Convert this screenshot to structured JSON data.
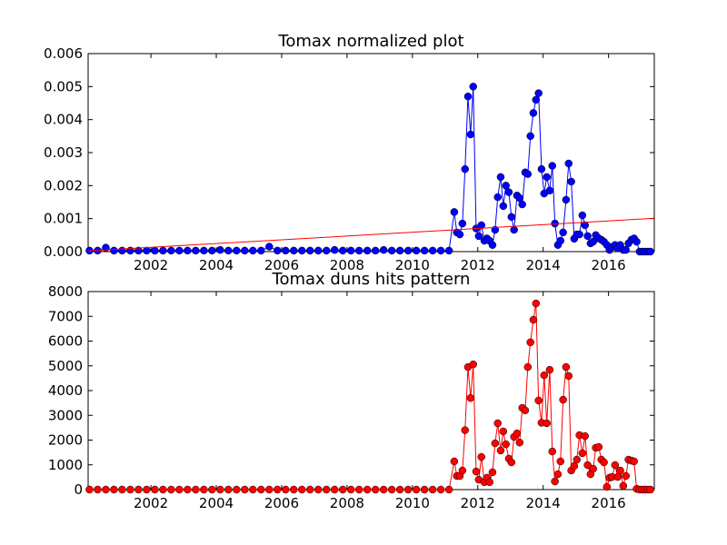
{
  "chart_data": [
    {
      "type": "line",
      "title": "Tomax normalized plot",
      "marker": true,
      "grid": false,
      "xlim": [
        2000.08,
        2017.4
      ],
      "xticks": [
        2002,
        2004,
        2006,
        2008,
        2010,
        2012,
        2014,
        2016
      ],
      "ylim": [
        0,
        0.006
      ],
      "yticks": [
        {
          "value": 0,
          "label": "0.000"
        },
        {
          "value": 0.001,
          "label": "0.001"
        },
        {
          "value": 0.002,
          "label": "0.002"
        },
        {
          "value": 0.003,
          "label": "0.003"
        },
        {
          "value": 0.004,
          "label": "0.004"
        },
        {
          "value": 0.005,
          "label": "0.005"
        },
        {
          "value": 0.006,
          "label": "0.006"
        }
      ],
      "x": [
        2000.12,
        2000.37,
        2000.62,
        2000.87,
        2001.12,
        2001.37,
        2001.62,
        2001.87,
        2002.12,
        2002.37,
        2002.62,
        2002.87,
        2003.12,
        2003.37,
        2003.62,
        2003.87,
        2004.12,
        2004.37,
        2004.62,
        2004.87,
        2005.12,
        2005.37,
        2005.62,
        2005.87,
        2006.12,
        2006.37,
        2006.62,
        2006.87,
        2007.12,
        2007.37,
        2007.62,
        2007.87,
        2008.12,
        2008.37,
        2008.62,
        2008.87,
        2009.12,
        2009.37,
        2009.62,
        2009.87,
        2010.12,
        2010.37,
        2010.62,
        2010.87,
        2011.12,
        2011.28,
        2011.36,
        2011.45,
        2011.53,
        2011.61,
        2011.7,
        2011.78,
        2011.86,
        2011.95,
        2012.03,
        2012.11,
        2012.2,
        2012.28,
        2012.36,
        2012.45,
        2012.53,
        2012.61,
        2012.7,
        2012.78,
        2012.86,
        2012.95,
        2013.03,
        2013.11,
        2013.2,
        2013.28,
        2013.36,
        2013.45,
        2013.53,
        2013.61,
        2013.7,
        2013.78,
        2013.86,
        2013.95,
        2014.03,
        2014.11,
        2014.2,
        2014.28,
        2014.36,
        2014.45,
        2014.53,
        2014.61,
        2014.7,
        2014.78,
        2014.86,
        2014.95,
        2015.03,
        2015.11,
        2015.2,
        2015.28,
        2015.36,
        2015.45,
        2015.53,
        2015.61,
        2015.7,
        2015.78,
        2015.86,
        2015.95,
        2016.03,
        2016.11,
        2016.2,
        2016.28,
        2016.36,
        2016.45,
        2016.53,
        2016.61,
        2016.7,
        2016.78,
        2016.86,
        2016.95,
        2017.03,
        2017.11,
        2017.2,
        2017.28
      ],
      "series": [
        {
          "color": "#0000ff",
          "values": [
            3e-05,
            3e-05,
            0.00012,
            3e-05,
            3e-05,
            3e-05,
            3e-05,
            3e-05,
            3e-05,
            3e-05,
            3e-05,
            3e-05,
            3e-05,
            3e-05,
            3e-05,
            3e-05,
            5e-05,
            3e-05,
            3e-05,
            3e-05,
            3e-05,
            3e-05,
            0.00015,
            3e-05,
            3e-05,
            3e-05,
            3e-05,
            3e-05,
            3e-05,
            3e-05,
            5e-05,
            3e-05,
            3e-05,
            3e-05,
            3e-05,
            3e-05,
            5e-05,
            3e-05,
            3e-05,
            3e-05,
            3e-05,
            3e-05,
            3e-05,
            3e-05,
            3e-05,
            0.0012,
            0.00058,
            0.00052,
            0.00085,
            0.0025,
            0.0047,
            0.00355,
            0.005,
            0.0007,
            0.00047,
            0.0008,
            0.00033,
            0.0004,
            0.00033,
            0.0002,
            0.00066,
            0.00165,
            0.00226,
            0.00138,
            0.002,
            0.0018,
            0.00105,
            0.00066,
            0.0017,
            0.00162,
            0.00143,
            0.0024,
            0.00235,
            0.0035,
            0.0042,
            0.0046,
            0.0048,
            0.0025,
            0.00176,
            0.00226,
            0.00185,
            0.0026,
            0.00085,
            0.0002,
            0.00033,
            0.00058,
            0.00157,
            0.00267,
            0.00212,
            0.00039,
            0.00052,
            0.00052,
            0.0011,
            0.0008,
            0.00047,
            0.00025,
            0.0003,
            0.0005,
            0.0004,
            0.00036,
            0.0003,
            0.0002,
            5e-05,
            0.00014,
            0.0002,
            0.0001,
            0.0002,
            5e-05,
            5e-05,
            0.00025,
            0.00036,
            0.0004,
            0.0003,
            0,
            0,
            0,
            0,
            0
          ]
        }
      ],
      "trend_line": {
        "color": "#ff0000",
        "x": [
          2000.08,
          2017.4
        ],
        "values": [
          2e-05,
          0.00101
        ]
      }
    },
    {
      "type": "line",
      "title": "Tomax duns hits pattern",
      "marker": true,
      "grid": false,
      "xlim": [
        2000.08,
        2017.4
      ],
      "xticks": [
        2002,
        2004,
        2006,
        2008,
        2010,
        2012,
        2014,
        2016
      ],
      "ylim": [
        0,
        8000
      ],
      "yticks": [
        0,
        1000,
        2000,
        3000,
        4000,
        5000,
        6000,
        7000,
        8000
      ],
      "x": [
        2000.12,
        2000.37,
        2000.62,
        2000.87,
        2001.12,
        2001.37,
        2001.62,
        2001.87,
        2002.12,
        2002.37,
        2002.62,
        2002.87,
        2003.12,
        2003.37,
        2003.62,
        2003.87,
        2004.12,
        2004.37,
        2004.62,
        2004.87,
        2005.12,
        2005.37,
        2005.62,
        2005.87,
        2006.12,
        2006.37,
        2006.62,
        2006.87,
        2007.12,
        2007.37,
        2007.62,
        2007.87,
        2008.12,
        2008.37,
        2008.62,
        2008.87,
        2009.12,
        2009.37,
        2009.62,
        2009.87,
        2010.12,
        2010.37,
        2010.62,
        2010.87,
        2011.12,
        2011.28,
        2011.36,
        2011.45,
        2011.53,
        2011.61,
        2011.7,
        2011.78,
        2011.86,
        2011.95,
        2012.03,
        2012.11,
        2012.2,
        2012.28,
        2012.36,
        2012.45,
        2012.53,
        2012.61,
        2012.7,
        2012.78,
        2012.86,
        2012.95,
        2013.03,
        2013.11,
        2013.2,
        2013.28,
        2013.36,
        2013.45,
        2013.53,
        2013.61,
        2013.7,
        2013.78,
        2013.86,
        2013.95,
        2014.03,
        2014.11,
        2014.2,
        2014.28,
        2014.36,
        2014.45,
        2014.53,
        2014.61,
        2014.7,
        2014.78,
        2014.86,
        2014.95,
        2015.03,
        2015.11,
        2015.2,
        2015.28,
        2015.36,
        2015.45,
        2015.53,
        2015.61,
        2015.7,
        2015.78,
        2015.86,
        2015.95,
        2016.03,
        2016.11,
        2016.2,
        2016.28,
        2016.36,
        2016.45,
        2016.53,
        2016.61,
        2016.7,
        2016.78,
        2016.86,
        2016.95,
        2017.03,
        2017.11,
        2017.2,
        2017.28
      ],
      "series": [
        {
          "color": "#ff0000",
          "values": [
            0,
            0,
            0,
            0,
            0,
            0,
            0,
            0,
            0,
            0,
            0,
            0,
            0,
            0,
            0,
            0,
            0,
            0,
            0,
            0,
            0,
            0,
            0,
            0,
            0,
            0,
            0,
            0,
            0,
            0,
            0,
            0,
            0,
            0,
            0,
            0,
            0,
            0,
            0,
            0,
            0,
            0,
            0,
            0,
            0,
            1140,
            550,
            550,
            770,
            2400,
            4950,
            3700,
            5060,
            730,
            400,
            1320,
            300,
            480,
            300,
            700,
            1870,
            2680,
            1580,
            2350,
            1830,
            1250,
            1100,
            2130,
            2270,
            1900,
            3300,
            3200,
            4950,
            5950,
            6860,
            7520,
            3600,
            2700,
            4620,
            2680,
            4840,
            1540,
            330,
            620,
            1140,
            3630,
            4950,
            4590,
            770,
            950,
            1210,
            2200,
            1470,
            2160,
            990,
            620,
            840,
            1690,
            1720,
            1210,
            1100,
            110,
            480,
            510,
            990,
            510,
            770,
            150,
            550,
            1210,
            1170,
            1140,
            30,
            0,
            0,
            0,
            0,
            0
          ]
        }
      ]
    }
  ]
}
